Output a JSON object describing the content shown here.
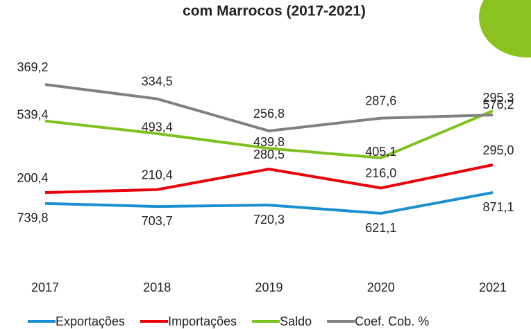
{
  "chart_data": {
    "type": "line",
    "title": "com Marrocos (2017-2021)",
    "categories": [
      "2017",
      "2018",
      "2019",
      "2020",
      "2021"
    ],
    "series": [
      {
        "name": "Exportações",
        "color": "#1b8fd2",
        "values": [
          739.8,
          703.7,
          720.3,
          621.1,
          871.1
        ],
        "value_labels": [
          "739,8",
          "703,7",
          "720,3",
          "621,1",
          "871,1"
        ]
      },
      {
        "name": "Importações",
        "color": "#e8000b",
        "values": [
          200.4,
          210.4,
          280.5,
          216.0,
          295.0
        ],
        "value_labels": [
          "200,4",
          "210,4",
          "280,5",
          "216,0",
          "295,0"
        ]
      },
      {
        "name": "Saldo",
        "color": "#7dc21e",
        "values": [
          539.4,
          493.4,
          439.8,
          405.1,
          576.2
        ],
        "value_labels": [
          "539,4",
          "493,4",
          "439,8",
          "405,1",
          "576,2"
        ]
      },
      {
        "name": "Coef. Cob. %",
        "color": "#808080",
        "values": [
          369.2,
          334.5,
          256.8,
          287.6,
          295.3
        ],
        "value_labels": [
          "369,2",
          "334,5",
          "256,8",
          "287,6",
          "295,3"
        ]
      }
    ]
  }
}
